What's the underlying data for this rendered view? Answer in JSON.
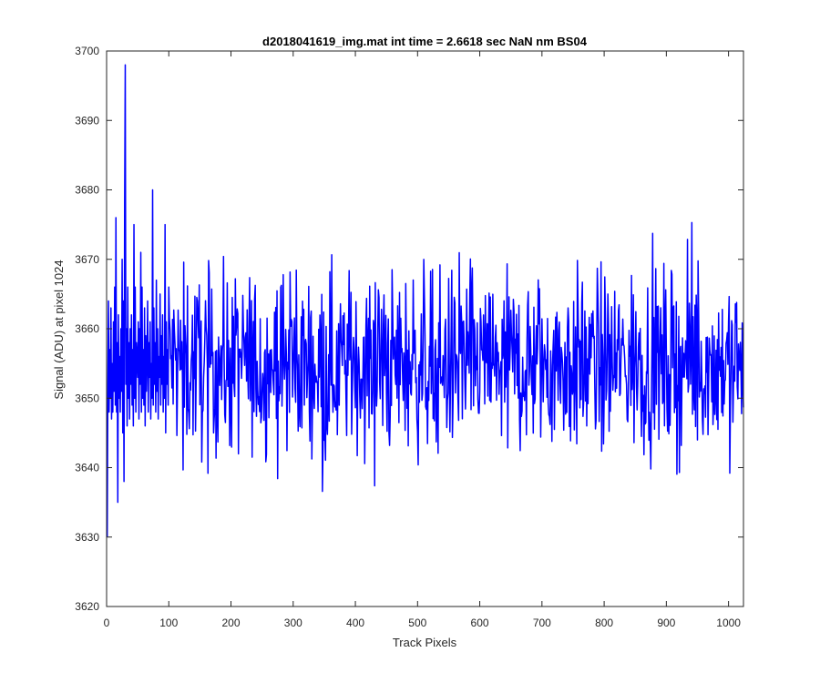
{
  "chart_data": {
    "type": "line",
    "title": "d2018041619_img.mat int time = 2.6618 sec  NaN nm BS04",
    "xlabel": "Track Pixels",
    "ylabel": "Signal (ADU) at pixel 1024",
    "xlim": [
      0,
      1024
    ],
    "ylim": [
      3620,
      3700
    ],
    "xticks": [
      0,
      100,
      200,
      300,
      400,
      500,
      600,
      700,
      800,
      900,
      1000
    ],
    "yticks": [
      3620,
      3630,
      3640,
      3650,
      3660,
      3670,
      3680,
      3690,
      3700
    ],
    "grid": false,
    "legend": "none",
    "series": [
      {
        "color": "#0000ff",
        "x_start": 1,
        "x_step": 1,
        "values": [
          3630,
          3652,
          3664,
          3648,
          3657,
          3650,
          3663,
          3647,
          3655,
          3648,
          3661,
          3651,
          3666,
          3649,
          3676,
          3648,
          3658,
          3635,
          3662,
          3650,
          3656,
          3648,
          3660,
          3651,
          3670,
          3645,
          3664,
          3638,
          3678,
          3698,
          3652,
          3660,
          3646,
          3666,
          3650,
          3658,
          3647,
          3660,
          3652,
          3662,
          3649,
          3657,
          3646,
          3675,
          3650,
          3666,
          3648,
          3658,
          3656,
          3653,
          3661,
          3647,
          3660,
          3652,
          3671,
          3648,
          3666,
          3650,
          3657,
          3649,
          3663,
          3646,
          3659,
          3651,
          3656,
          3664,
          3648,
          3658,
          3653,
          3661,
          3647,
          3655,
          3650,
          3680,
          3649,
          3663,
          3652,
          3658,
          3648,
          3667,
          3651,
          3660,
          3647,
          3656,
          3653,
          3665,
          3649,
          3659,
          3652,
          3662,
          3648,
          3656,
          3650,
          3675,
          3645,
          3661,
          3652,
          3657,
          3649,
          3666
        ],
        "values_tail_note": ""
      }
    ]
  }
}
